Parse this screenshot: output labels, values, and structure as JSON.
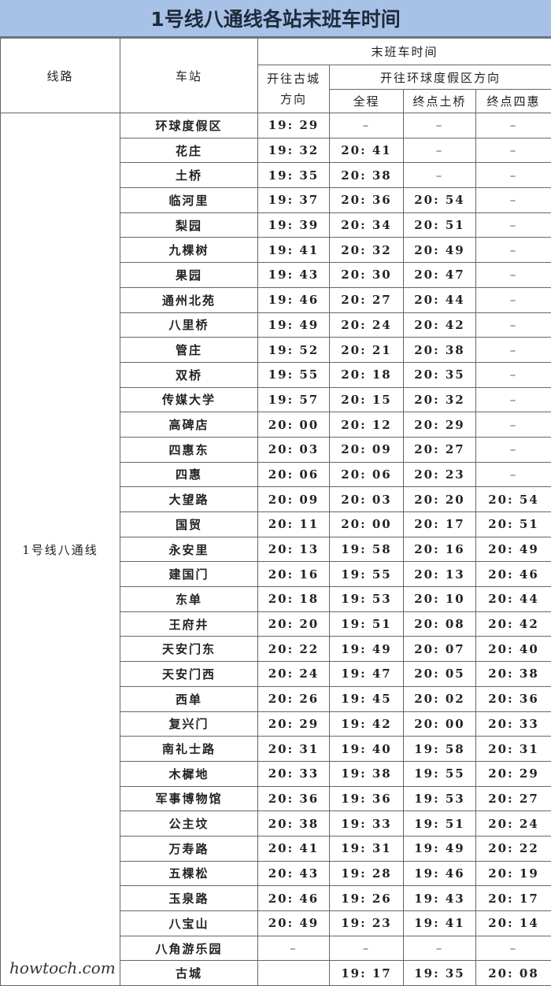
{
  "title": "1号线八通线各站末班车时间",
  "headers": {
    "line": "线路",
    "station": "车站",
    "last_train": "末班车时间",
    "to_gucheng": "开往古城方向",
    "to_resort": "开往环球度假区方向",
    "full": "全程",
    "end_tuqiao": "终点土桥",
    "end_sihui": "终点四惠"
  },
  "line_name": "1号线八通线",
  "rows": [
    [
      "环球度假区",
      "19: 29",
      "–",
      "–",
      "–"
    ],
    [
      "花庄",
      "19: 32",
      "20: 41",
      "–",
      "–"
    ],
    [
      "土桥",
      "19: 35",
      "20: 38",
      "–",
      "–"
    ],
    [
      "临河里",
      "19: 37",
      "20: 36",
      "20: 54",
      "–"
    ],
    [
      "梨园",
      "19: 39",
      "20: 34",
      "20: 51",
      "–"
    ],
    [
      "九棵树",
      "19: 41",
      "20: 32",
      "20: 49",
      "–"
    ],
    [
      "果园",
      "19: 43",
      "20: 30",
      "20: 47",
      "–"
    ],
    [
      "通州北苑",
      "19: 46",
      "20: 27",
      "20: 44",
      "–"
    ],
    [
      "八里桥",
      "19: 49",
      "20: 24",
      "20: 42",
      "–"
    ],
    [
      "管庄",
      "19: 52",
      "20: 21",
      "20: 38",
      "–"
    ],
    [
      "双桥",
      "19: 55",
      "20: 18",
      "20: 35",
      "–"
    ],
    [
      "传媒大学",
      "19: 57",
      "20: 15",
      "20: 32",
      "–"
    ],
    [
      "高碑店",
      "20: 00",
      "20: 12",
      "20: 29",
      "–"
    ],
    [
      "四惠东",
      "20: 03",
      "20: 09",
      "20: 27",
      "–"
    ],
    [
      "四惠",
      "20: 06",
      "20: 06",
      "20: 23",
      "–"
    ],
    [
      "大望路",
      "20: 09",
      "20: 03",
      "20: 20",
      "20: 54"
    ],
    [
      "国贸",
      "20: 11",
      "20: 00",
      "20: 17",
      "20: 51"
    ],
    [
      "永安里",
      "20: 13",
      "19: 58",
      "20: 16",
      "20: 49"
    ],
    [
      "建国门",
      "20: 16",
      "19: 55",
      "20: 13",
      "20: 46"
    ],
    [
      "东单",
      "20: 18",
      "19: 53",
      "20: 10",
      "20: 44"
    ],
    [
      "王府井",
      "20: 20",
      "19: 51",
      "20: 08",
      "20: 42"
    ],
    [
      "天安门东",
      "20: 22",
      "19: 49",
      "20: 07",
      "20: 40"
    ],
    [
      "天安门西",
      "20: 24",
      "19: 47",
      "20: 05",
      "20: 38"
    ],
    [
      "西单",
      "20: 26",
      "19: 45",
      "20: 02",
      "20: 36"
    ],
    [
      "复兴门",
      "20: 29",
      "19: 42",
      "20: 00",
      "20: 33"
    ],
    [
      "南礼士路",
      "20: 31",
      "19: 40",
      "19: 58",
      "20: 31"
    ],
    [
      "木樨地",
      "20: 33",
      "19: 38",
      "19: 55",
      "20: 29"
    ],
    [
      "军事博物馆",
      "20: 36",
      "19: 36",
      "19: 53",
      "20: 27"
    ],
    [
      "公主坟",
      "20: 38",
      "19: 33",
      "19: 51",
      "20: 24"
    ],
    [
      "万寿路",
      "20: 41",
      "19: 31",
      "19: 49",
      "20: 22"
    ],
    [
      "五棵松",
      "20: 43",
      "19: 28",
      "19: 46",
      "20: 19"
    ],
    [
      "玉泉路",
      "20: 46",
      "19: 26",
      "19: 43",
      "20: 17"
    ],
    [
      "八宝山",
      "20: 49",
      "19: 23",
      "19: 41",
      "20: 14"
    ],
    [
      "八角游乐园",
      "–",
      "–",
      "–",
      "–"
    ],
    [
      "古城",
      "",
      "19: 17",
      "19: 35",
      "20: 08"
    ]
  ],
  "watermark": "howtoch.com"
}
